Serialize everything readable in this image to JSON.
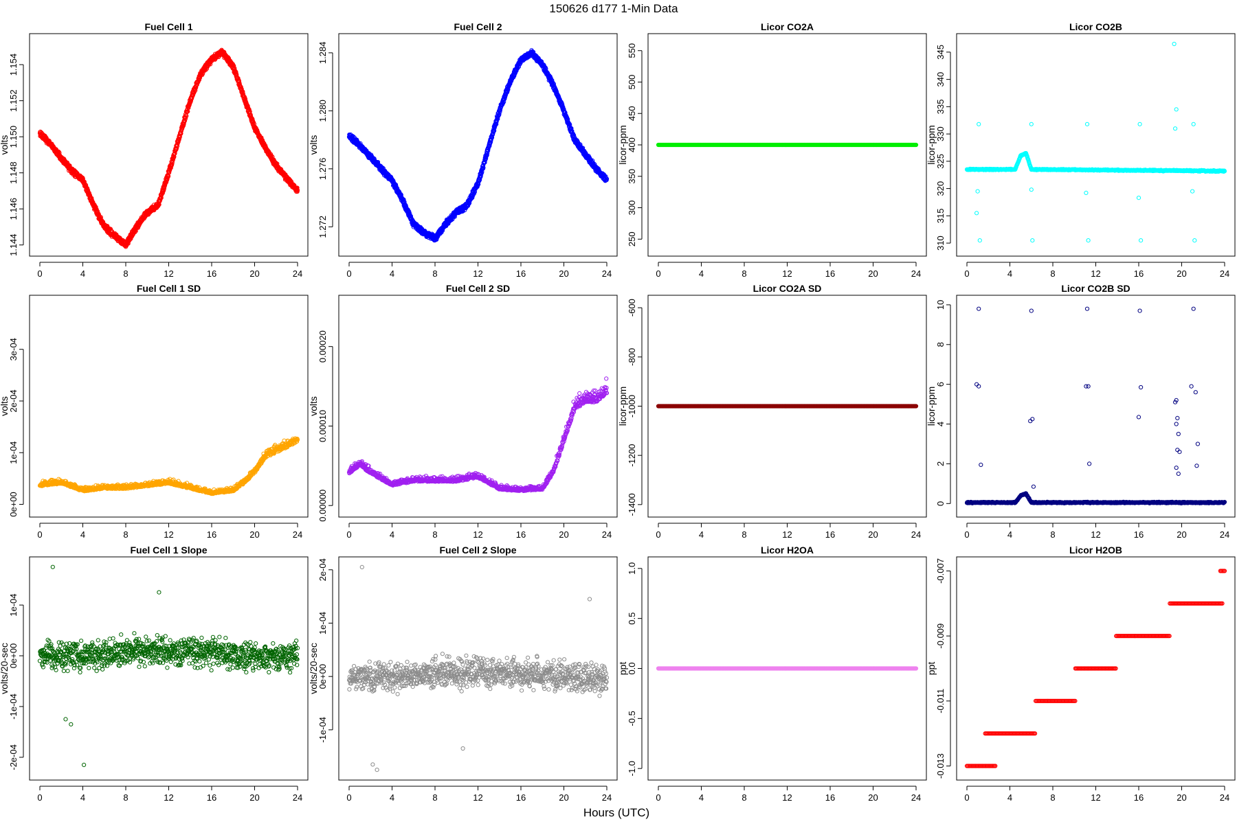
{
  "figure": {
    "title": "150626    d177    1-Min Data",
    "xlabel": "Hours (UTC)"
  },
  "chart_data": [
    {
      "type": "scatter",
      "title": "Fuel Cell 1",
      "xlabel": "",
      "ylabel": "volts",
      "xlim": [
        0,
        24
      ],
      "ylim": [
        1.1438,
        1.1553
      ],
      "xticks": [
        "0",
        "4",
        "8",
        "12",
        "16",
        "20",
        "24"
      ],
      "yticks": [
        "1.144",
        "1.146",
        "1.148",
        "1.150",
        "1.152",
        "1.154"
      ],
      "color": "#ff0000",
      "series": [
        {
          "name": "Fuel Cell 1",
          "x": [
            0,
            1,
            2,
            3,
            4,
            5,
            6,
            7,
            8,
            9,
            10,
            11,
            12,
            13,
            14,
            15,
            16,
            17,
            18,
            19,
            20,
            21,
            22,
            23,
            24
          ],
          "y": [
            1.1502,
            1.1496,
            1.1488,
            1.1481,
            1.1476,
            1.1462,
            1.145,
            1.1445,
            1.144,
            1.145,
            1.1458,
            1.1462,
            1.148,
            1.15,
            1.152,
            1.1535,
            1.1543,
            1.1547,
            1.1539,
            1.1522,
            1.1505,
            1.1494,
            1.1484,
            1.1477,
            1.147
          ]
        }
      ]
    },
    {
      "type": "scatter",
      "title": "Fuel Cell 2",
      "xlabel": "",
      "ylabel": "volts",
      "xlim": [
        0,
        24
      ],
      "ylim": [
        1.2705,
        1.2848
      ],
      "xticks": [
        "0",
        "4",
        "8",
        "12",
        "16",
        "20",
        "24"
      ],
      "yticks": [
        "1.272",
        "1.276",
        "1.280",
        "1.284"
      ],
      "color": "#0000ff",
      "series": [
        {
          "name": "Fuel Cell 2",
          "x": [
            0,
            1,
            2,
            3,
            4,
            5,
            6,
            7,
            8,
            9,
            10,
            11,
            12,
            13,
            14,
            15,
            16,
            17,
            18,
            19,
            20,
            21,
            22,
            23,
            24
          ],
          "y": [
            1.2783,
            1.2776,
            1.2768,
            1.276,
            1.2752,
            1.2738,
            1.2722,
            1.2716,
            1.2712,
            1.2722,
            1.273,
            1.2735,
            1.275,
            1.2775,
            1.28,
            1.282,
            1.2835,
            1.284,
            1.2832,
            1.2818,
            1.28,
            1.278,
            1.277,
            1.276,
            1.2752
          ]
        }
      ]
    },
    {
      "type": "scatter",
      "title": "Licor CO2A",
      "xlabel": "",
      "ylabel": "licor-ppm",
      "xlim": [
        0,
        24
      ],
      "ylim": [
        235,
        565
      ],
      "xticks": [
        "0",
        "4",
        "8",
        "12",
        "16",
        "20",
        "24"
      ],
      "yticks": [
        "250",
        "300",
        "350",
        "400",
        "450",
        "500",
        "550"
      ],
      "color": "#00ee00",
      "series": [
        {
          "name": "Licor CO2A",
          "x": [
            0,
            24
          ],
          "y": [
            400,
            400
          ]
        }
      ]
    },
    {
      "type": "scatter",
      "title": "Licor CO2B",
      "xlabel": "",
      "ylabel": "licor-ppm",
      "xlim": [
        0,
        24
      ],
      "ylim": [
        309,
        347
      ],
      "xticks": [
        "0",
        "4",
        "8",
        "12",
        "16",
        "20",
        "24"
      ],
      "yticks": [
        "310",
        "315",
        "320",
        "325",
        "330",
        "335",
        "340",
        "345"
      ],
      "color": "#00ffff",
      "series": [
        {
          "name": "Licor CO2B",
          "x": [
            0,
            4.5,
            5,
            5.5,
            6,
            24
          ],
          "y": [
            323.5,
            323.5,
            326,
            326.5,
            323.5,
            323.2
          ]
        }
      ],
      "outliers": {
        "x": [
          1.1,
          1.2,
          6.0,
          6.1,
          11.2,
          11.3,
          16.1,
          16.2,
          21.1,
          21.2,
          1.0,
          6.0,
          11.1,
          16.0,
          21.0,
          0.9,
          19.3,
          19.5,
          19.4
        ],
        "y": [
          331.8,
          310.5,
          331.8,
          310.5,
          331.8,
          310.5,
          331.8,
          310.5,
          331.8,
          310.5,
          319.5,
          319.8,
          319.2,
          318.3,
          319.5,
          315.5,
          346.5,
          334.5,
          331
        ]
      }
    },
    {
      "type": "scatter",
      "title": "Fuel Cell 1 SD",
      "xlabel": "",
      "ylabel": "volts",
      "xlim": [
        0,
        24
      ],
      "ylim": [
        -1e-05,
        0.00039
      ],
      "xticks": [
        "0",
        "4",
        "8",
        "12",
        "16",
        "20",
        "24"
      ],
      "yticks": [
        "0e+00",
        "1e-04",
        "2e-04",
        "3e-04"
      ],
      "color": "#ffa500",
      "series": [
        {
          "name": "Fuel Cell 1 SD",
          "x": [
            0,
            2,
            4,
            6,
            8,
            10,
            12,
            14,
            16,
            18,
            19,
            20,
            21,
            22,
            23,
            24
          ],
          "y": [
            3.5e-05,
            4e-05,
            2.5e-05,
            3e-05,
            3e-05,
            3.5e-05,
            4e-05,
            3e-05,
            2e-05,
            2.5e-05,
            4e-05,
            6e-05,
            9e-05,
            0.0001,
            0.00011,
            0.00012
          ]
        }
      ]
    },
    {
      "type": "scatter",
      "title": "Fuel Cell 2 SD",
      "xlabel": "",
      "ylabel": "volts",
      "xlim": [
        0,
        24
      ],
      "ylim": [
        -5e-06,
        0.000255
      ],
      "xticks": [
        "0",
        "4",
        "8",
        "12",
        "16",
        "20",
        "24"
      ],
      "yticks": [
        "0.00000",
        "0.00010",
        "0.00020"
      ],
      "color": "#a020f0",
      "series": [
        {
          "name": "Fuel Cell 2 SD",
          "x": [
            0,
            1,
            2,
            4,
            6,
            8,
            10,
            12,
            14,
            16,
            18,
            19,
            20,
            21,
            22,
            23,
            24
          ],
          "y": [
            4e-05,
            5e-05,
            4e-05,
            2.5e-05,
            3e-05,
            3e-05,
            3e-05,
            3.5e-05,
            2e-05,
            1.8e-05,
            2e-05,
            4e-05,
            8e-05,
            0.00012,
            0.00013,
            0.00013,
            0.00014
          ]
        }
      ]
    },
    {
      "type": "scatter",
      "title": "Licor CO2A SD",
      "xlabel": "",
      "ylabel": "licor-ppm",
      "xlim": [
        0,
        24
      ],
      "ylim": [
        -1420,
        -580
      ],
      "xticks": [
        "0",
        "4",
        "8",
        "12",
        "16",
        "20",
        "24"
      ],
      "yticks": [
        "-1400",
        "-1200",
        "-1000",
        "-800",
        "-600"
      ],
      "color": "#8b0000",
      "series": [
        {
          "name": "Licor CO2A SD",
          "x": [
            0,
            24
          ],
          "y": [
            -1000,
            -1000
          ]
        }
      ]
    },
    {
      "type": "scatter",
      "title": "Licor CO2B SD",
      "xlabel": "",
      "ylabel": "licor-ppm",
      "xlim": [
        0,
        24
      ],
      "ylim": [
        -0.3,
        10.1
      ],
      "xticks": [
        "0",
        "4",
        "8",
        "12",
        "16",
        "20",
        "24"
      ],
      "yticks": [
        "0",
        "2",
        "4",
        "6",
        "8",
        "10"
      ],
      "color": "#000080",
      "series": [
        {
          "name": "Licor CO2B SD",
          "x": [
            0,
            4.5,
            5,
            5.5,
            6,
            24
          ],
          "y": [
            0.05,
            0.05,
            0.4,
            0.5,
            0.05,
            0.05
          ]
        }
      ],
      "outliers": {
        "x": [
          1.1,
          6.0,
          11.2,
          16.1,
          21.1,
          0.9,
          1.1,
          11.1,
          11.3,
          16.2,
          20.9,
          21.3,
          5.9,
          6.1,
          16.0,
          1.3,
          11.4,
          19.5,
          19.6,
          19.7,
          21.5,
          19.4,
          19.5,
          19.6,
          19.5,
          19.8,
          19.7,
          21.4,
          6.2
        ],
        "y": [
          9.8,
          9.7,
          9.8,
          9.7,
          9.8,
          6.0,
          5.9,
          5.9,
          5.9,
          5.85,
          5.9,
          5.6,
          4.15,
          4.25,
          4.35,
          1.95,
          2.0,
          5.2,
          4.3,
          3.5,
          3.0,
          5.1,
          4.0,
          2.7,
          1.8,
          2.6,
          1.5,
          1.9,
          0.85
        ]
      }
    },
    {
      "type": "scatter",
      "title": "Fuel Cell 1 Slope",
      "xlabel": "",
      "ylabel": "volts/20-sec",
      "xlim": [
        0,
        24
      ],
      "ylim": [
        -0.00023,
        0.00018
      ],
      "xticks": [
        "0",
        "4",
        "8",
        "12",
        "16",
        "20",
        "24"
      ],
      "yticks": [
        "-2e-04",
        "-1e-04",
        "0e+00",
        "1e-04"
      ],
      "color": "#006400",
      "series": [
        {
          "name": "Fuel Cell 1 Slope",
          "x": [
            0,
            4,
            8,
            12,
            16,
            20,
            24
          ],
          "y": [
            0,
            0,
            1e-05,
            1e-05,
            5e-06,
            0,
            0
          ]
        }
      ],
      "outliers": {
        "x": [
          1.2,
          4.1,
          11.1,
          2.4,
          2.9
        ],
        "y": [
          0.000175,
          -0.000215,
          0.000125,
          -0.000125,
          -0.000135
        ]
      }
    },
    {
      "type": "scatter",
      "title": "Fuel Cell 2 Slope",
      "xlabel": "",
      "ylabel": "volts/20-sec",
      "xlim": [
        0,
        24
      ],
      "ylim": [
        -0.00018,
        0.00021
      ],
      "xticks": [
        "0",
        "4",
        "8",
        "12",
        "16",
        "20",
        "24"
      ],
      "yticks": [
        "-1e-04",
        "0e+00",
        "1e-04",
        "2e-04"
      ],
      "color": "#8c8c8c",
      "series": [
        {
          "name": "Fuel Cell 2 Slope",
          "x": [
            0,
            4,
            8,
            12,
            16,
            20,
            24
          ],
          "y": [
            0,
            0,
            5e-06,
            1e-05,
            5e-06,
            0,
            -5e-06
          ]
        }
      ],
      "outliers": {
        "x": [
          1.2,
          2.6,
          2.2,
          10.6,
          22.4
        ],
        "y": [
          0.000205,
          -0.000175,
          -0.000165,
          -0.000135,
          0.000145
        ]
      }
    },
    {
      "type": "scatter",
      "title": "Licor H2OA",
      "xlabel": "",
      "ylabel": "ppt",
      "xlim": [
        0,
        24
      ],
      "ylim": [
        -1.04,
        1.04
      ],
      "xticks": [
        "0",
        "4",
        "8",
        "12",
        "16",
        "20",
        "24"
      ],
      "yticks": [
        "-1.0",
        "-0.5",
        "0.0",
        "0.5",
        "1.0"
      ],
      "color": "#ee82ee",
      "series": [
        {
          "name": "Licor H2OA",
          "x": [
            0,
            24
          ],
          "y": [
            0,
            0
          ]
        }
      ]
    },
    {
      "type": "scatter",
      "title": "Licor H2OB",
      "xlabel": "",
      "ylabel": "ppt",
      "xlim": [
        0,
        24
      ],
      "ylim": [
        -0.0132,
        -0.0068
      ],
      "xticks": [
        "0",
        "4",
        "8",
        "12",
        "16",
        "20",
        "24"
      ],
      "yticks": [
        "-0.013",
        "-0.011",
        "-0.009",
        "-0.007"
      ],
      "color": "#ff0000",
      "series": [
        {
          "name": "Licor H2OB",
          "steps": [
            [
              0,
              2.7,
              -0.013
            ],
            [
              1.7,
              6.4,
              -0.012
            ],
            [
              6.4,
              10.1,
              -0.011
            ],
            [
              10.1,
              13.9,
              -0.01
            ],
            [
              13.9,
              18.9,
              -0.009
            ],
            [
              18.9,
              23.8,
              -0.008
            ],
            [
              23.6,
              24,
              -0.007
            ]
          ]
        }
      ]
    }
  ]
}
